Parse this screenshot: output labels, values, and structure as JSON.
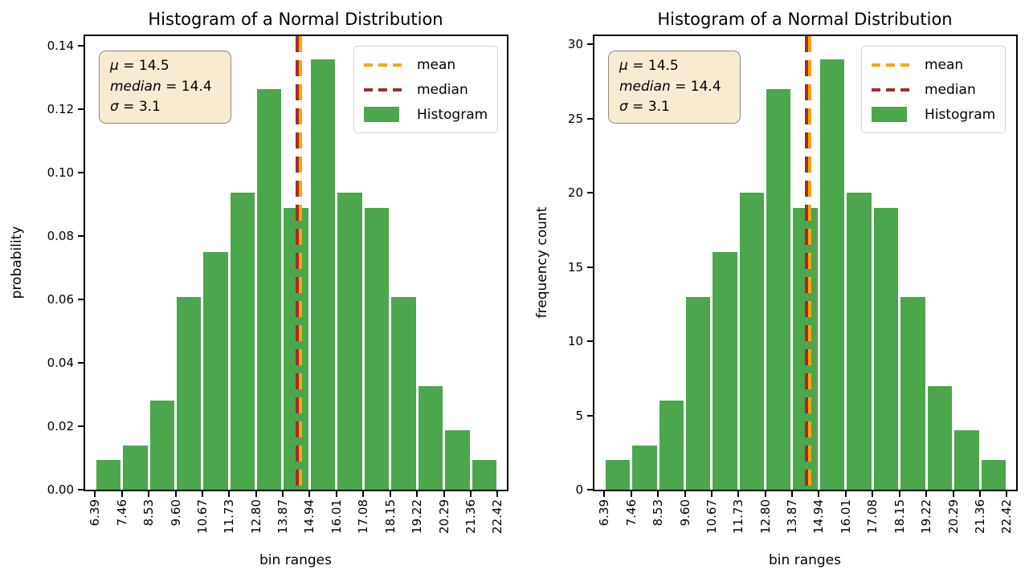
{
  "colors": {
    "bar": "#4CA64C",
    "mean_line": "#FFA500",
    "median_line": "#A52A2A",
    "annotation_bg": "#F7ECD2",
    "annotation_border": "#8F8A80",
    "legend_border": "#D5D5D5",
    "spine": "#000000"
  },
  "chart_data": [
    {
      "type": "bar",
      "title": "Histogram of a Normal Distribution",
      "xlabel": "bin ranges",
      "ylabel": "probability",
      "grid": false,
      "legend_position": "upper right",
      "bin_edges": [
        6.39,
        7.46,
        8.53,
        9.6,
        10.67,
        11.73,
        12.8,
        13.87,
        14.94,
        16.01,
        17.08,
        18.15,
        19.22,
        20.29,
        21.36,
        22.42
      ],
      "values": [
        0.00936,
        0.01404,
        0.02807,
        0.06082,
        0.07486,
        0.09358,
        0.12633,
        0.0889,
        0.13568,
        0.09358,
        0.0889,
        0.06082,
        0.03275,
        0.01872,
        0.00936
      ],
      "xtick_labels": [
        "6.39",
        "7.46",
        "8.53",
        "9.60",
        "10.67",
        "11.73",
        "12.80",
        "13.87",
        "14.94",
        "16.01",
        "17.08",
        "18.15",
        "19.22",
        "20.29",
        "21.36",
        "22.42"
      ],
      "ytick_values": [
        0,
        0.02,
        0.04,
        0.06,
        0.08,
        0.1,
        0.12,
        0.14
      ],
      "ytick_labels": [
        "0.00",
        "0.02",
        "0.04",
        "0.06",
        "0.08",
        "0.10",
        "0.12",
        "0.14"
      ],
      "xlim": [
        6.0,
        22.8
      ],
      "ylim": [
        0,
        0.143
      ],
      "mean": 14.5,
      "median": 14.4,
      "annotation_lines": [
        {
          "symbol": "μ",
          "eq": " = ",
          "value": "14.5"
        },
        {
          "symbol": "median",
          "eq": " = ",
          "value": "14.4"
        },
        {
          "symbol": "σ",
          "eq": " = ",
          "value": "3.1"
        }
      ],
      "legend": [
        {
          "label": "mean",
          "swatch": "dashed",
          "color": "#FFA500"
        },
        {
          "label": "median",
          "swatch": "dashed",
          "color": "#A52A2A"
        },
        {
          "label": "Histogram",
          "swatch": "patch",
          "color": "#4CA64C"
        }
      ]
    },
    {
      "type": "bar",
      "title": "Histogram of a Normal Distribution",
      "xlabel": "bin ranges",
      "ylabel": "frequency count",
      "grid": false,
      "legend_position": "upper right",
      "bin_edges": [
        6.39,
        7.46,
        8.53,
        9.6,
        10.67,
        11.73,
        12.8,
        13.87,
        14.94,
        16.01,
        17.08,
        18.15,
        19.22,
        20.29,
        21.36,
        22.42
      ],
      "values": [
        2,
        3,
        6,
        13,
        16,
        20,
        27,
        19,
        29,
        20,
        19,
        13,
        7,
        4,
        2
      ],
      "xtick_labels": [
        "6.39",
        "7.46",
        "8.53",
        "9.60",
        "10.67",
        "11.73",
        "12.80",
        "13.87",
        "14.94",
        "16.01",
        "17.08",
        "18.15",
        "19.22",
        "20.29",
        "21.36",
        "22.42"
      ],
      "ytick_values": [
        0,
        5,
        10,
        15,
        20,
        25,
        30
      ],
      "ytick_labels": [
        "0",
        "5",
        "10",
        "15",
        "20",
        "25",
        "30"
      ],
      "xlim": [
        6.0,
        22.8
      ],
      "ylim": [
        0,
        30.55
      ],
      "mean": 14.5,
      "median": 14.4,
      "annotation_lines": [
        {
          "symbol": "μ",
          "eq": " = ",
          "value": "14.5"
        },
        {
          "symbol": "median",
          "eq": " = ",
          "value": "14.4"
        },
        {
          "symbol": "σ",
          "eq": " = ",
          "value": "3.1"
        }
      ],
      "legend": [
        {
          "label": "mean",
          "swatch": "dashed",
          "color": "#FFA500"
        },
        {
          "label": "median",
          "swatch": "dashed",
          "color": "#A52A2A"
        },
        {
          "label": "Histogram",
          "swatch": "patch",
          "color": "#4CA64C"
        }
      ]
    }
  ]
}
